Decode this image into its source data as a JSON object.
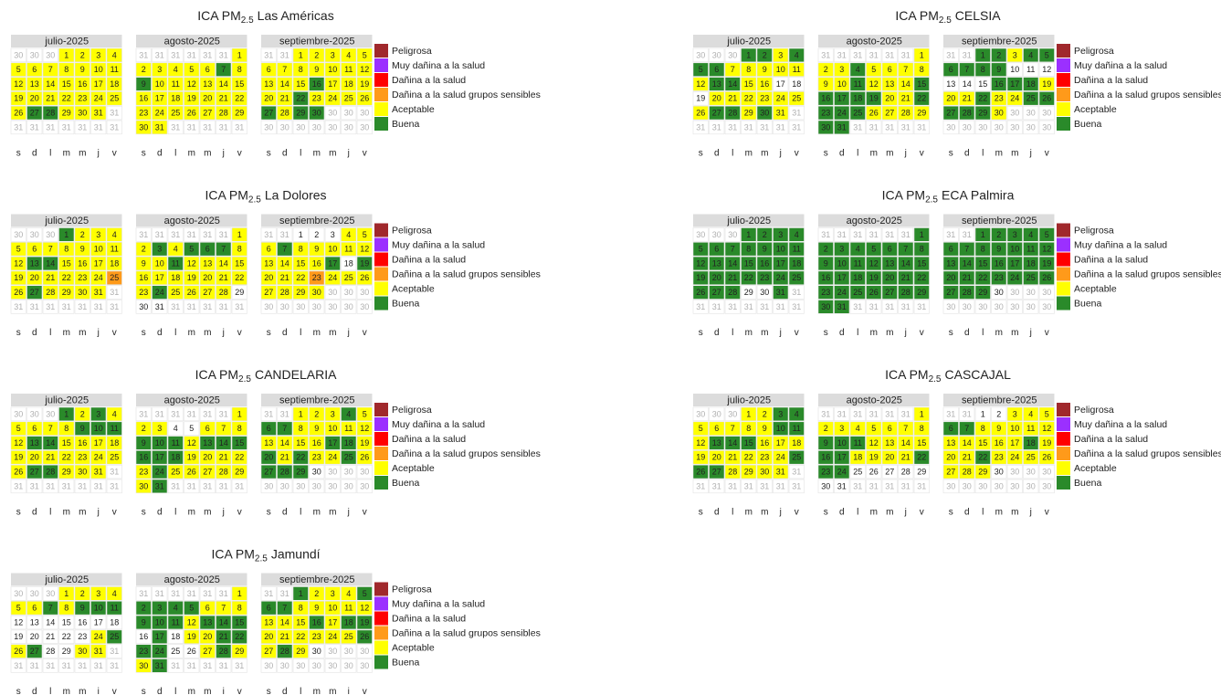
{
  "months": [
    {
      "name": "julio-2025",
      "days": [
        30,
        30,
        30,
        1,
        2,
        3,
        4,
        5,
        6,
        7,
        8,
        9,
        10,
        11,
        12,
        13,
        14,
        15,
        16,
        17,
        18,
        19,
        20,
        21,
        22,
        23,
        24,
        25,
        26,
        27,
        28,
        29,
        30,
        31,
        31,
        31,
        31,
        31,
        31,
        31,
        31,
        31
      ]
    },
    {
      "name": "agosto-2025",
      "days": [
        31,
        31,
        31,
        31,
        31,
        31,
        1,
        2,
        3,
        4,
        5,
        6,
        7,
        8,
        9,
        10,
        11,
        12,
        13,
        14,
        15,
        16,
        17,
        18,
        19,
        20,
        21,
        22,
        23,
        24,
        25,
        26,
        27,
        28,
        29,
        30,
        31,
        31,
        31,
        31,
        31,
        31
      ]
    },
    {
      "name": "septiembre-2025",
      "days": [
        31,
        31,
        1,
        2,
        3,
        4,
        5,
        6,
        7,
        8,
        9,
        10,
        11,
        12,
        13,
        14,
        15,
        16,
        17,
        18,
        19,
        20,
        21,
        22,
        23,
        24,
        25,
        26,
        27,
        28,
        29,
        30,
        30,
        30,
        30,
        30,
        30,
        30,
        30,
        30,
        30,
        30
      ]
    }
  ],
  "legend": [
    {
      "name": "Peligrosa",
      "color": "#a0282c"
    },
    {
      "name": "Muy dañina a la salud",
      "color": "#9b30ff"
    },
    {
      "name": "Dañina a la salud",
      "color": "#ff0000"
    },
    {
      "name": "Dañina a la salud grupos sensibles",
      "color": "#ff9a1a"
    },
    {
      "name": "Aceptable",
      "color": "#ffff00"
    },
    {
      "name": "Buena",
      "color": "#2a8a2a"
    }
  ],
  "chart_data": [
    {
      "type": "calendar",
      "title": "ICA PM",
      "subscript": "2.5",
      "station": "Las Américas",
      "weekdays": [
        "s",
        "d",
        "l",
        "m",
        "m",
        "j",
        "v"
      ],
      "levels": [
        [
          4,
          4,
          4,
          4,
          4,
          4,
          4,
          4,
          4,
          4,
          4,
          4,
          4,
          4,
          4,
          4,
          4,
          4,
          4,
          4,
          4,
          4,
          4,
          4,
          4,
          4,
          5,
          5,
          4,
          4,
          4
        ],
        [
          4,
          4,
          4,
          4,
          4,
          4,
          5,
          4,
          5,
          4,
          4,
          4,
          4,
          4,
          4,
          4,
          4,
          4,
          4,
          4,
          4,
          4,
          4,
          4,
          4,
          4,
          4,
          4,
          4,
          4,
          4
        ],
        [
          4,
          4,
          4,
          4,
          4,
          4,
          4,
          4,
          4,
          4,
          4,
          4,
          4,
          4,
          4,
          5,
          4,
          4,
          4,
          4,
          4,
          5,
          4,
          4,
          4,
          4,
          5,
          4,
          5,
          5
        ]
      ]
    },
    {
      "type": "calendar",
      "title": "ICA PM",
      "subscript": "2.5",
      "station": "CELSIA",
      "weekdays": [
        "s",
        "d",
        "l",
        "m",
        "m",
        "j",
        "v"
      ],
      "levels": [
        [
          5,
          5,
          4,
          5,
          5,
          5,
          4,
          4,
          4,
          4,
          4,
          4,
          5,
          5,
          4,
          4,
          null,
          null,
          null,
          4,
          4,
          4,
          4,
          4,
          4,
          4,
          5,
          5,
          4,
          5,
          4
        ],
        [
          4,
          4,
          4,
          5,
          4,
          4,
          4,
          4,
          4,
          4,
          5,
          4,
          4,
          4,
          5,
          5,
          5,
          5,
          5,
          4,
          4,
          5,
          5,
          5,
          5,
          4,
          4,
          4,
          4,
          5,
          5
        ],
        [
          5,
          5,
          4,
          5,
          5,
          5,
          5,
          5,
          5,
          null,
          null,
          null,
          null,
          null,
          null,
          5,
          5,
          5,
          4,
          4,
          4,
          5,
          4,
          4,
          5,
          5,
          5,
          5,
          5,
          4
        ]
      ]
    },
    {
      "type": "calendar",
      "title": "ICA PM",
      "subscript": "2.5",
      "station": "La Dolores",
      "weekdays": [
        "s",
        "d",
        "l",
        "m",
        "m",
        "j",
        "v"
      ],
      "levels": [
        [
          5,
          4,
          4,
          4,
          4,
          4,
          4,
          4,
          4,
          4,
          4,
          4,
          5,
          5,
          4,
          4,
          4,
          4,
          4,
          4,
          4,
          4,
          4,
          4,
          3,
          4,
          5,
          4,
          4,
          4,
          4
        ],
        [
          4,
          4,
          5,
          4,
          5,
          5,
          5,
          4,
          4,
          4,
          5,
          4,
          4,
          4,
          4,
          4,
          4,
          4,
          4,
          4,
          4,
          4,
          4,
          5,
          4,
          4,
          4,
          4,
          null,
          null,
          null
        ],
        [
          null,
          null,
          null,
          4,
          4,
          4,
          5,
          4,
          4,
          4,
          4,
          4,
          4,
          4,
          4,
          4,
          5,
          null,
          5,
          4,
          4,
          4,
          3,
          4,
          4,
          4,
          4,
          4,
          4,
          4
        ]
      ]
    },
    {
      "type": "calendar",
      "title": "ICA PM",
      "subscript": "2.5",
      "station": "ECA Palmira",
      "weekdays": [
        "s",
        "d",
        "l",
        "m",
        "m",
        "j",
        "v"
      ],
      "levels": [
        [
          5,
          5,
          5,
          5,
          5,
          5,
          5,
          5,
          5,
          5,
          5,
          5,
          5,
          5,
          5,
          5,
          5,
          5,
          5,
          5,
          5,
          5,
          5,
          5,
          5,
          5,
          5,
          5,
          null,
          null,
          5
        ],
        [
          5,
          5,
          5,
          5,
          5,
          5,
          5,
          5,
          5,
          5,
          5,
          5,
          5,
          5,
          5,
          5,
          5,
          5,
          5,
          5,
          5,
          5,
          5,
          5,
          5,
          5,
          5,
          5,
          5,
          5,
          5
        ],
        [
          5,
          5,
          5,
          5,
          5,
          5,
          5,
          5,
          5,
          5,
          5,
          5,
          5,
          5,
          5,
          5,
          5,
          5,
          5,
          5,
          5,
          5,
          5,
          5,
          5,
          5,
          5,
          5,
          5,
          null
        ]
      ]
    },
    {
      "type": "calendar",
      "title": "ICA PM",
      "subscript": "2.5",
      "station": "CANDELARIA",
      "weekdays": [
        "s",
        "d",
        "l",
        "m",
        "m",
        "j",
        "v"
      ],
      "levels": [
        [
          5,
          4,
          5,
          4,
          4,
          4,
          4,
          4,
          5,
          5,
          5,
          4,
          5,
          5,
          4,
          4,
          4,
          4,
          4,
          4,
          4,
          4,
          4,
          4,
          4,
          4,
          5,
          5,
          4,
          4,
          4
        ],
        [
          4,
          4,
          4,
          null,
          null,
          4,
          4,
          4,
          5,
          5,
          5,
          4,
          5,
          5,
          5,
          5,
          5,
          5,
          4,
          4,
          4,
          4,
          4,
          5,
          4,
          4,
          4,
          4,
          4,
          4,
          5
        ],
        [
          4,
          4,
          4,
          5,
          4,
          5,
          5,
          4,
          4,
          4,
          4,
          4,
          4,
          4,
          4,
          4,
          5,
          5,
          4,
          5,
          4,
          5,
          4,
          4,
          5,
          4,
          5,
          5,
          5,
          null
        ]
      ]
    },
    {
      "type": "calendar",
      "title": "ICA PM",
      "subscript": "2.5",
      "station": "CASCAJAL",
      "weekdays": [
        "s",
        "d",
        "l",
        "m",
        "m",
        "j",
        "v"
      ],
      "levels": [
        [
          4,
          4,
          5,
          5,
          4,
          4,
          4,
          4,
          4,
          5,
          5,
          4,
          5,
          5,
          5,
          4,
          4,
          4,
          4,
          4,
          4,
          4,
          4,
          4,
          5,
          5,
          5,
          4,
          4,
          4,
          4
        ],
        [
          4,
          4,
          4,
          4,
          4,
          4,
          4,
          4,
          5,
          5,
          5,
          4,
          4,
          4,
          4,
          5,
          5,
          4,
          4,
          4,
          4,
          5,
          5,
          5,
          null,
          null,
          null,
          null,
          null,
          null,
          null
        ],
        [
          null,
          null,
          4,
          4,
          4,
          5,
          5,
          4,
          4,
          4,
          4,
          4,
          4,
          4,
          4,
          4,
          4,
          5,
          4,
          4,
          4,
          5,
          4,
          4,
          4,
          4,
          4,
          4,
          4,
          null
        ]
      ]
    },
    {
      "type": "calendar",
      "title": "ICA PM",
      "subscript": "2.5",
      "station": "Jamundí",
      "weekdays": [
        "s",
        "d",
        "l",
        "m",
        "m",
        "i",
        "v"
      ],
      "levels": [
        [
          4,
          4,
          4,
          4,
          4,
          4,
          5,
          4,
          5,
          5,
          5,
          null,
          null,
          null,
          null,
          null,
          null,
          null,
          null,
          null,
          null,
          null,
          null,
          4,
          5,
          4,
          5,
          null,
          null,
          4,
          4
        ],
        [
          4,
          5,
          5,
          5,
          5,
          4,
          4,
          4,
          5,
          5,
          5,
          4,
          5,
          5,
          5,
          null,
          5,
          null,
          4,
          4,
          5,
          5,
          5,
          5,
          null,
          null,
          4,
          5,
          4,
          4,
          5
        ],
        [
          5,
          4,
          4,
          4,
          5,
          5,
          5,
          4,
          4,
          4,
          4,
          4,
          4,
          4,
          4,
          5,
          4,
          5,
          5,
          4,
          4,
          4,
          4,
          4,
          4,
          5,
          4,
          5,
          4,
          null
        ]
      ]
    }
  ]
}
